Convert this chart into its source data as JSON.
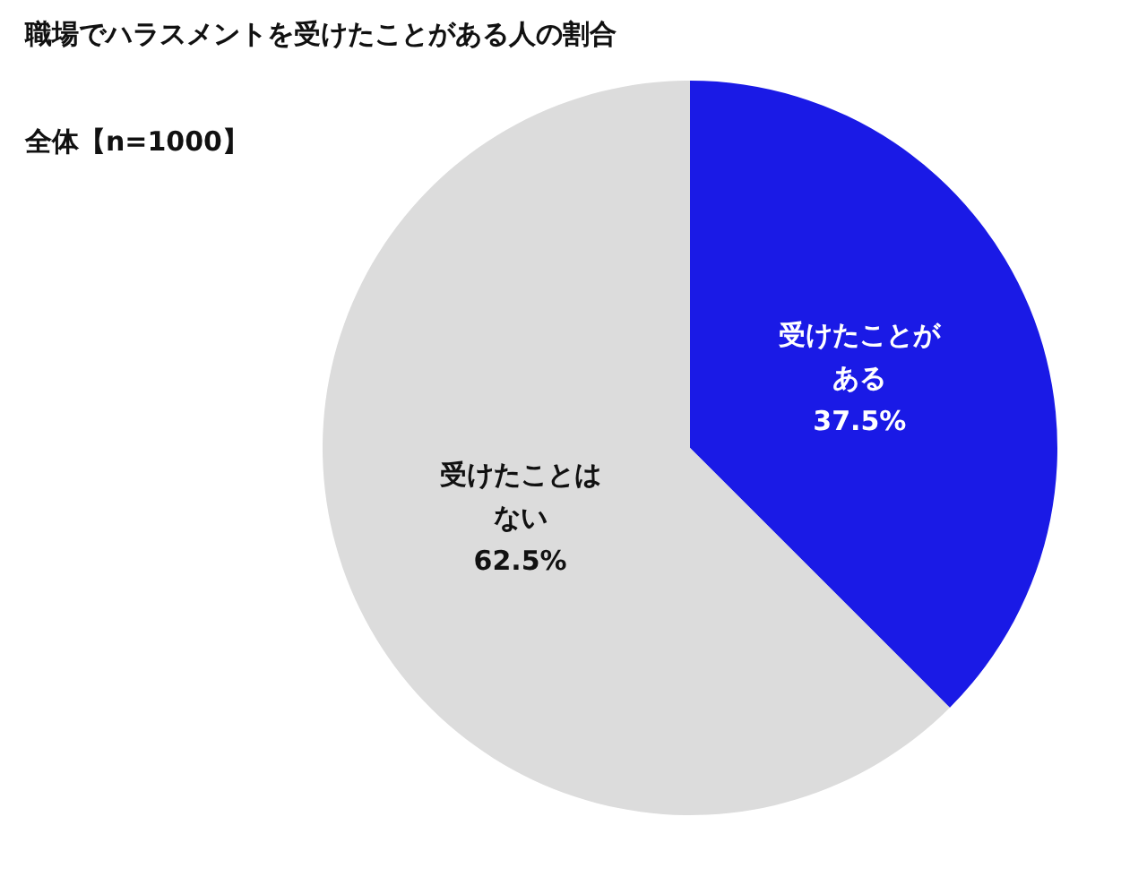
{
  "chart_data": {
    "type": "pie",
    "title": "職場でハラスメントを受けたことがある人の割合",
    "subtitle": "全体【n=1000】",
    "categories": [
      "受けたことがある",
      "受けたことはない"
    ],
    "values": [
      37.5,
      62.5
    ],
    "colors": [
      "#1a1ae6",
      "#dcdcdc"
    ],
    "value_labels": [
      "37.5%",
      "62.5%"
    ],
    "legend": false
  }
}
